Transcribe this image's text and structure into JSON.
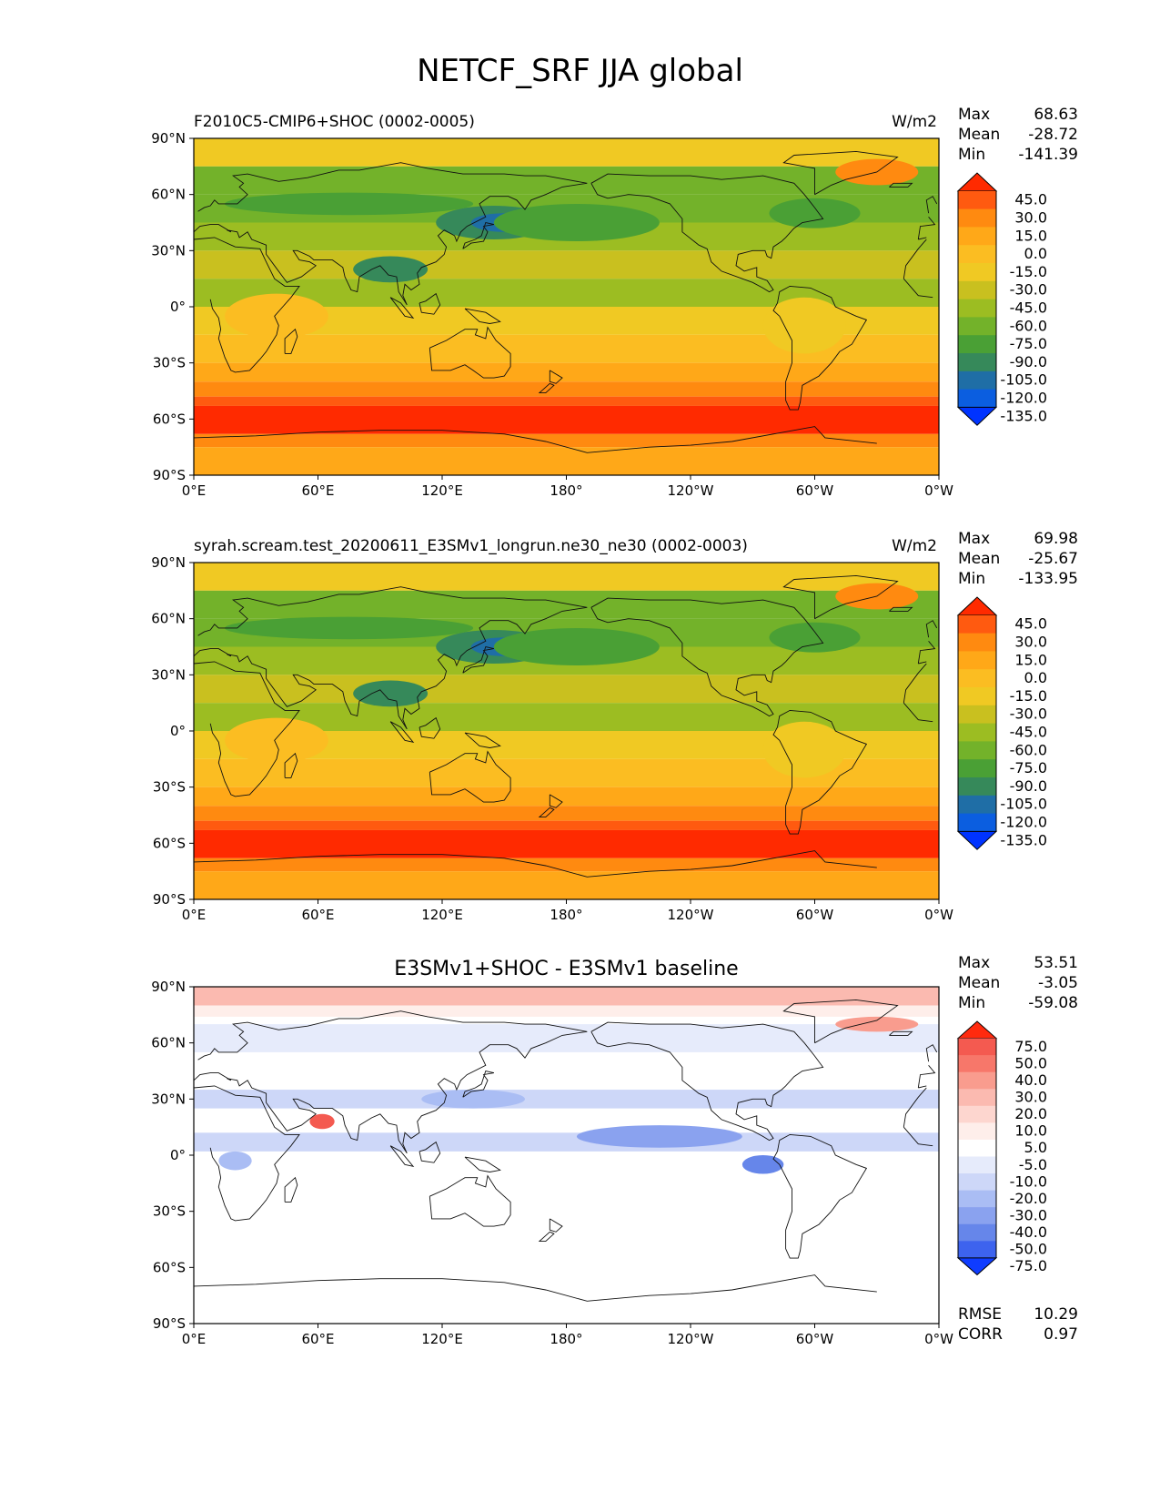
{
  "figure": {
    "title": "NETCF_SRF JJA global"
  },
  "panels": [
    {
      "id": "test",
      "left_title": "F2010C5-CMIP6+SHOC (0002-0005)",
      "center_title": "",
      "units": "W/m2",
      "stats": [
        {
          "label": "Max",
          "value": "68.63"
        },
        {
          "label": "Mean",
          "value": "-28.72"
        },
        {
          "label": "Min",
          "value": "-141.39"
        }
      ],
      "colorbar": {
        "ticks": [
          "45.0",
          "30.0",
          "15.0",
          "0.0",
          "-15.0",
          "-30.0",
          "-45.0",
          "-60.0",
          "-75.0",
          "-90.0",
          "-105.0",
          "-120.0",
          "-135.0"
        ],
        "colors": [
          "#ff2a00",
          "#ff5a10",
          "#ff8a10",
          "#ffa818",
          "#fbbd22",
          "#f0c923",
          "#c9c01f",
          "#9cbd22",
          "#73b22a",
          "#4aa035",
          "#36895a",
          "#1f6ea6",
          "#0b5ee0",
          "#0033ff"
        ],
        "extend": "both"
      },
      "extra_stats": []
    },
    {
      "id": "reference",
      "left_title": "syrah.scream.test_20200611_E3SMv1_longrun.ne30_ne30 (0002-0003)",
      "center_title": "",
      "units": "W/m2",
      "stats": [
        {
          "label": "Max",
          "value": "69.98"
        },
        {
          "label": "Mean",
          "value": "-25.67"
        },
        {
          "label": "Min",
          "value": "-133.95"
        }
      ],
      "colorbar": {
        "ticks": [
          "45.0",
          "30.0",
          "15.0",
          "0.0",
          "-15.0",
          "-30.0",
          "-45.0",
          "-60.0",
          "-75.0",
          "-90.0",
          "-105.0",
          "-120.0",
          "-135.0"
        ],
        "colors": [
          "#ff2a00",
          "#ff5a10",
          "#ff8a10",
          "#ffa818",
          "#fbbd22",
          "#f0c923",
          "#c9c01f",
          "#9cbd22",
          "#73b22a",
          "#4aa035",
          "#36895a",
          "#1f6ea6",
          "#0b5ee0",
          "#0033ff"
        ],
        "extend": "both"
      },
      "extra_stats": []
    },
    {
      "id": "difference",
      "left_title": "",
      "center_title": "E3SMv1+SHOC - E3SMv1 baseline",
      "units": "",
      "stats": [
        {
          "label": "Max",
          "value": "53.51"
        },
        {
          "label": "Mean",
          "value": "-3.05"
        },
        {
          "label": "Min",
          "value": "-59.08"
        }
      ],
      "colorbar": {
        "ticks": [
          "75.0",
          "50.0",
          "40.0",
          "30.0",
          "20.0",
          "10.0",
          "5.0",
          "-5.0",
          "-10.0",
          "-20.0",
          "-30.0",
          "-40.0",
          "-50.0",
          "-75.0"
        ],
        "colors": [
          "#ff2a0e",
          "#f45a50",
          "#f7776a",
          "#f99c8e",
          "#fbbab0",
          "#fdd6cf",
          "#feeeea",
          "#ffffff",
          "#e6ebfb",
          "#cdd7f8",
          "#aabdf4",
          "#8aa2ef",
          "#6686ea",
          "#3d63ee",
          "#0f3cff"
        ],
        "extend": "both"
      },
      "extra_stats": [
        {
          "label": "RMSE",
          "value": "10.29"
        },
        {
          "label": "CORR",
          "value": "0.97"
        }
      ]
    }
  ],
  "axes": {
    "x_ticks": [
      "0°E",
      "60°E",
      "120°E",
      "180°",
      "120°W",
      "60°W",
      "0°W"
    ],
    "y_ticks": [
      "90°N",
      "60°N",
      "30°N",
      "0°",
      "30°S",
      "60°S",
      "90°S"
    ]
  }
}
